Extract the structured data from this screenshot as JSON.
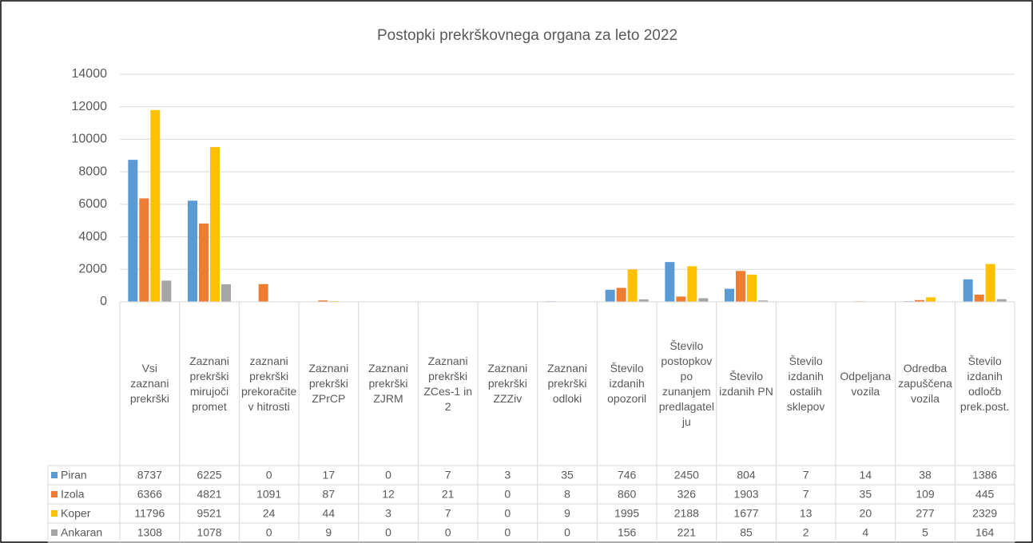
{
  "chart_data": {
    "type": "bar",
    "title": "Postopki prekrškovnega organa za leto 2022",
    "categories": [
      "Vsi zaznani prekrški",
      "Zaznani prekrški mirujoči promet",
      "zaznani prekrški prekoračitev hitrosti",
      "Zaznani prekrški ZPrCP",
      "Zaznani prekrški ZJRM",
      "Zaznani prekrški ZCes-1 in 2",
      "Zaznani prekrški ZZZiv",
      "Zaznani prekrški odloki",
      "Število izdanih opozoril",
      "Število postopkov po zunanjem predlagatelju",
      "Število izdanih PN",
      "Število izdanih ostalih sklepov",
      "Odpeljana vozila",
      "Odredba zapuščena vozila",
      "Število izdanih odločb prek.post."
    ],
    "series": [
      {
        "name": "Piran",
        "color": "#5b9bd5",
        "values": [
          8737,
          6225,
          0,
          17,
          0,
          7,
          3,
          35,
          746,
          2450,
          804,
          7,
          14,
          38,
          1386
        ]
      },
      {
        "name": "Izola",
        "color": "#ed7d31",
        "values": [
          6366,
          4821,
          1091,
          87,
          12,
          21,
          0,
          8,
          860,
          326,
          1903,
          7,
          35,
          109,
          445
        ]
      },
      {
        "name": "Koper",
        "color": "#ffc000",
        "values": [
          11796,
          9521,
          24,
          44,
          3,
          7,
          0,
          9,
          1995,
          2188,
          1677,
          13,
          20,
          277,
          2329
        ]
      },
      {
        "name": "Ankaran",
        "color": "#a5a5a5",
        "values": [
          1308,
          1078,
          0,
          9,
          0,
          0,
          0,
          0,
          156,
          221,
          85,
          2,
          4,
          5,
          164
        ]
      }
    ],
    "ylim": [
      0,
      14000
    ],
    "yticks": [
      0,
      2000,
      4000,
      6000,
      8000,
      10000,
      12000,
      14000
    ],
    "grid": true
  }
}
